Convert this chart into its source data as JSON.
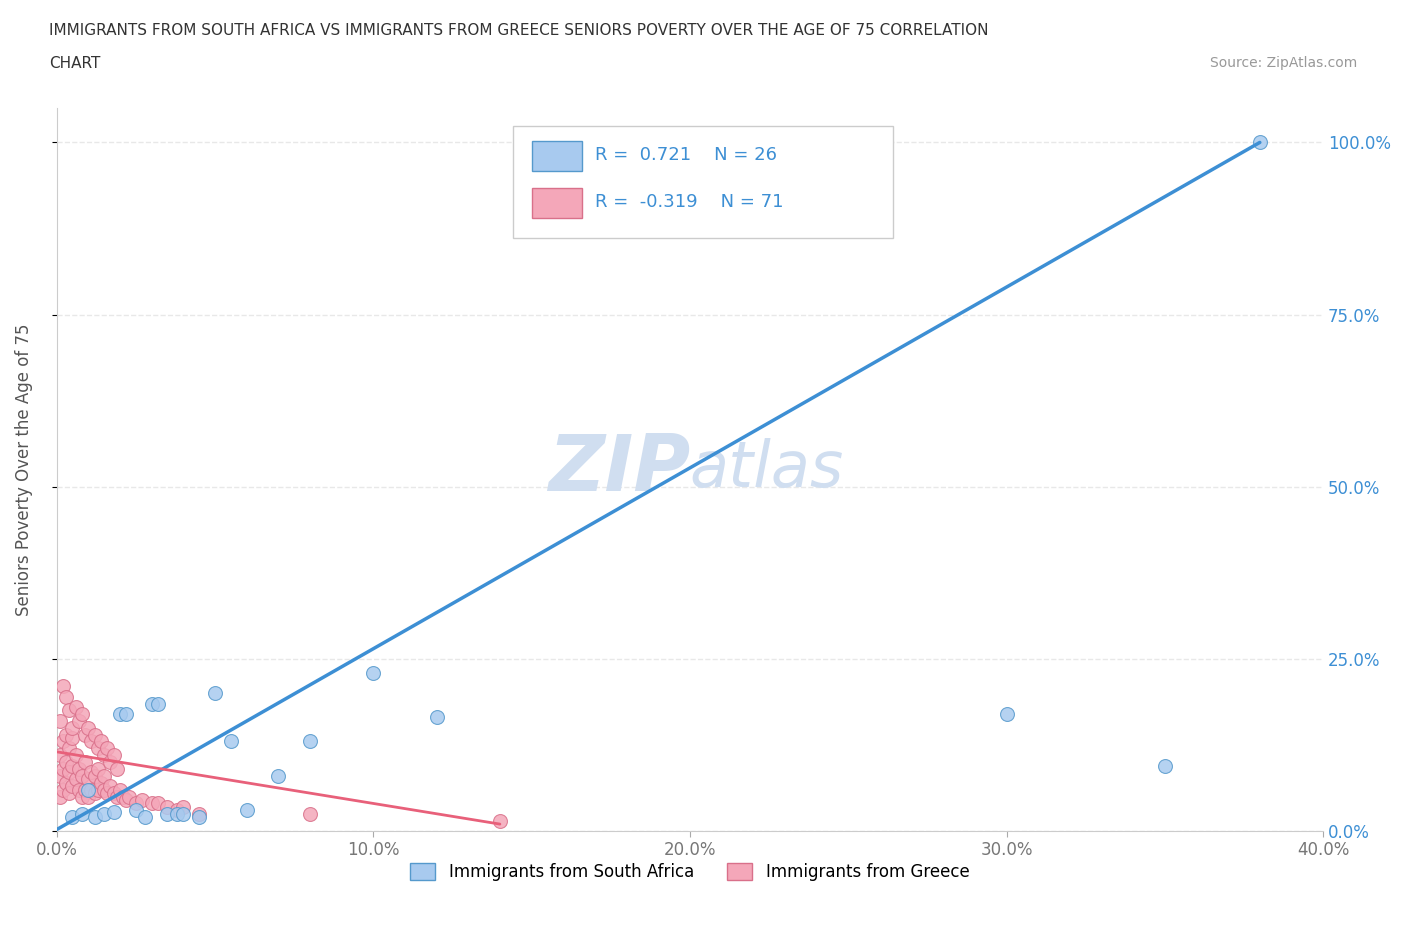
{
  "title_line1": "IMMIGRANTS FROM SOUTH AFRICA VS IMMIGRANTS FROM GREECE SENIORS POVERTY OVER THE AGE OF 75 CORRELATION",
  "title_line2": "CHART",
  "source_text": "Source: ZipAtlas.com",
  "ylabel": "Seniors Poverty Over the Age of 75",
  "xmin": 0.0,
  "xmax": 0.4,
  "ymin": 0.0,
  "ymax": 1.05,
  "x_tick_labels": [
    "0.0%",
    "10.0%",
    "20.0%",
    "30.0%",
    "40.0%"
  ],
  "x_tick_vals": [
    0.0,
    0.1,
    0.2,
    0.3,
    0.4
  ],
  "y_tick_labels": [
    "0.0%",
    "25.0%",
    "50.0%",
    "75.0%",
    "100.0%"
  ],
  "y_tick_vals": [
    0.0,
    0.25,
    0.5,
    0.75,
    1.0
  ],
  "blue_color": "#A8CAEF",
  "pink_color": "#F4A7B9",
  "blue_line_color": "#3D8FD4",
  "pink_line_color": "#E8607A",
  "legend_R1": "0.721",
  "legend_N1": "26",
  "legend_R2": "-0.319",
  "legend_N2": "71",
  "watermark_color": "#D0DEF0",
  "legend1_label": "Immigrants from South Africa",
  "legend2_label": "Immigrants from Greece",
  "blue_scatter_x": [
    0.005,
    0.008,
    0.01,
    0.012,
    0.015,
    0.018,
    0.02,
    0.022,
    0.025,
    0.028,
    0.03,
    0.032,
    0.035,
    0.038,
    0.04,
    0.045,
    0.05,
    0.055,
    0.06,
    0.07,
    0.08,
    0.1,
    0.12,
    0.3,
    0.35,
    0.38
  ],
  "blue_scatter_y": [
    0.02,
    0.025,
    0.06,
    0.02,
    0.025,
    0.028,
    0.17,
    0.17,
    0.03,
    0.02,
    0.185,
    0.185,
    0.025,
    0.025,
    0.025,
    0.02,
    0.2,
    0.13,
    0.03,
    0.08,
    0.13,
    0.23,
    0.165,
    0.17,
    0.095,
    1.0
  ],
  "pink_scatter_x": [
    0.001,
    0.001,
    0.001,
    0.002,
    0.002,
    0.002,
    0.003,
    0.003,
    0.003,
    0.004,
    0.004,
    0.004,
    0.005,
    0.005,
    0.005,
    0.006,
    0.006,
    0.007,
    0.007,
    0.008,
    0.008,
    0.009,
    0.009,
    0.01,
    0.01,
    0.011,
    0.011,
    0.012,
    0.012,
    0.013,
    0.013,
    0.014,
    0.015,
    0.015,
    0.016,
    0.017,
    0.018,
    0.019,
    0.02,
    0.021,
    0.022,
    0.023,
    0.025,
    0.027,
    0.03,
    0.032,
    0.035,
    0.038,
    0.04,
    0.045,
    0.001,
    0.002,
    0.003,
    0.004,
    0.005,
    0.006,
    0.007,
    0.008,
    0.009,
    0.01,
    0.011,
    0.012,
    0.013,
    0.014,
    0.015,
    0.016,
    0.017,
    0.018,
    0.019,
    0.08,
    0.14
  ],
  "pink_scatter_y": [
    0.05,
    0.08,
    0.11,
    0.06,
    0.09,
    0.13,
    0.07,
    0.1,
    0.14,
    0.055,
    0.085,
    0.12,
    0.065,
    0.095,
    0.135,
    0.075,
    0.11,
    0.06,
    0.09,
    0.05,
    0.08,
    0.06,
    0.1,
    0.05,
    0.075,
    0.06,
    0.085,
    0.055,
    0.08,
    0.06,
    0.09,
    0.07,
    0.06,
    0.08,
    0.055,
    0.065,
    0.055,
    0.05,
    0.06,
    0.05,
    0.045,
    0.05,
    0.04,
    0.045,
    0.04,
    0.04,
    0.035,
    0.03,
    0.035,
    0.025,
    0.16,
    0.21,
    0.195,
    0.175,
    0.15,
    0.18,
    0.16,
    0.17,
    0.14,
    0.15,
    0.13,
    0.14,
    0.12,
    0.13,
    0.11,
    0.12,
    0.1,
    0.11,
    0.09,
    0.025,
    0.015
  ],
  "blue_line_x": [
    0.0,
    0.38
  ],
  "blue_line_y": [
    0.002,
    1.0
  ],
  "pink_line_x": [
    0.0,
    0.14
  ],
  "pink_line_y": [
    0.115,
    0.01
  ],
  "grid_color": "#E8E8E8",
  "background_color": "#FFFFFF"
}
